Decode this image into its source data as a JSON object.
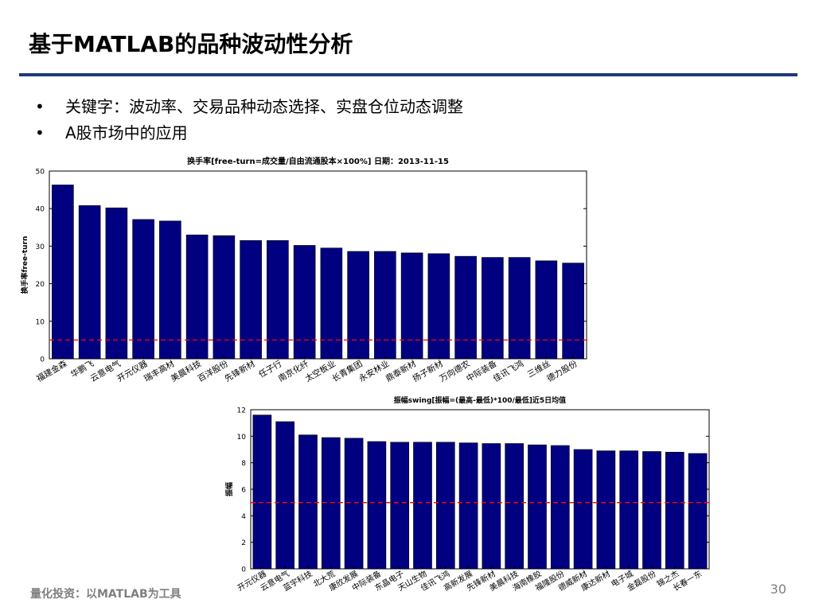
{
  "slide": {
    "title": "基于MATLAB的品种波动性分析",
    "bullets": [
      "关键字：波动率、交易品种动态选择、实盘仓位动态调整",
      "A股市场中的应用"
    ],
    "footer": "量化投资：以MATLAB为工具",
    "page_number": "30"
  },
  "colors": {
    "bar": "#000080",
    "reference_line": "#ff0000",
    "title_rule": "#1f3a7a"
  },
  "chart_data": [
    {
      "type": "bar",
      "title": "换手率[free-turn=成交量/自由流通股本×100%] 日期：2013-11-15",
      "xlabel": "",
      "ylabel": "换手率free-turn",
      "categories": [
        "福建金森",
        "华鹏飞",
        "云意电气",
        "开元仪器",
        "瑞丰高材",
        "美晨科技",
        "百洋股份",
        "先锋新材",
        "任子行",
        "南京化纤",
        "太空板业",
        "长青集团",
        "永安林业",
        "鼎泰新材",
        "扬子新材",
        "万向德农",
        "中际装备",
        "佳讯飞鸿",
        "三维丝",
        "德力股份"
      ],
      "values": [
        46.3,
        40.8,
        40.2,
        37.1,
        36.7,
        33.0,
        32.8,
        31.5,
        31.5,
        30.2,
        29.5,
        28.6,
        28.6,
        28.2,
        28.0,
        27.3,
        27.0,
        27.0,
        26.1,
        25.5
      ],
      "ylim": [
        0,
        50
      ],
      "yticks": [
        0,
        10,
        20,
        30,
        40,
        50
      ],
      "reference_line": 5,
      "grid": false
    },
    {
      "type": "bar",
      "title": "振幅swing[振幅=(最高-最低)*100/最低]近5日均值",
      "xlabel": "",
      "ylabel": "振幅",
      "categories": [
        "开元仪器",
        "云意电气",
        "蓝宇科技",
        "北大荒",
        "康欣发展",
        "中际装备",
        "东晶电子",
        "天山生物",
        "佳讯飞鸿",
        "高新发展",
        "先锋新材",
        "美晨科技",
        "海南橡胶",
        "福隆股份",
        "德威新材",
        "康达新材",
        "电子城",
        "金磊股份",
        "锦之杰",
        "长春一东"
      ],
      "values": [
        11.6,
        11.1,
        10.1,
        9.9,
        9.85,
        9.6,
        9.55,
        9.55,
        9.55,
        9.5,
        9.45,
        9.45,
        9.35,
        9.3,
        9.0,
        8.9,
        8.9,
        8.85,
        8.8,
        8.7
      ],
      "ylim": [
        0,
        12
      ],
      "yticks": [
        0,
        2,
        4,
        6,
        8,
        10,
        12
      ],
      "reference_line": 5,
      "grid": false
    }
  ]
}
